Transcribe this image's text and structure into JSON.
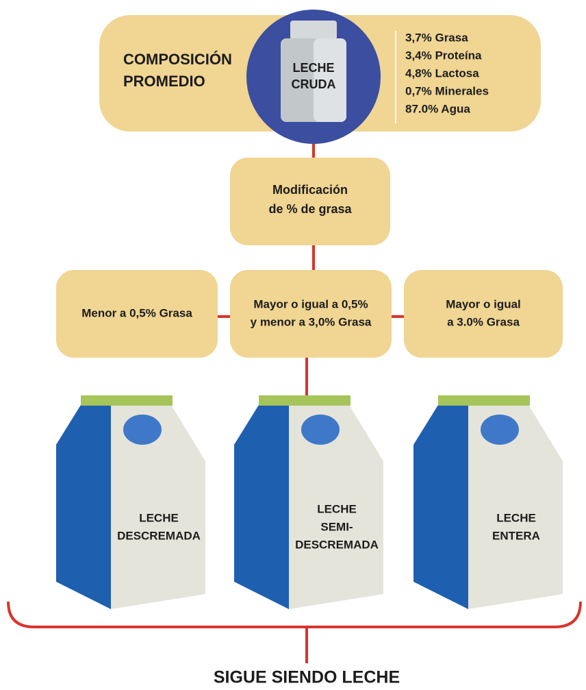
{
  "header": {
    "title_lines": [
      "COMPOSICIÓN",
      "PROMEDIO"
    ],
    "center_lines": [
      "LECHE",
      "CRUDA"
    ],
    "composition": [
      "3,7% Grasa",
      "3,4% Proteína",
      "4,8% Lactosa",
      "0,7% Minerales",
      "87.0% Agua"
    ]
  },
  "process": {
    "lines": [
      "Modificación",
      "de % de grasa"
    ]
  },
  "categories": [
    {
      "criteria_lines": [
        "Menor a 0,5% Grasa"
      ],
      "product_lines": [
        "LECHE",
        "DESCREMADA"
      ]
    },
    {
      "criteria_lines": [
        "Mayor o igual a 0,5%",
        "y menor a 3,0% Grasa"
      ],
      "product_lines": [
        "LECHE",
        "SEMI-",
        "DESCREMADA"
      ]
    },
    {
      "criteria_lines": [
        "Mayor o igual",
        "a 3.0% Grasa"
      ],
      "product_lines": [
        "LECHE",
        "ENTERA"
      ]
    }
  ],
  "footer": {
    "text": "SIGUE SIENDO LECHE"
  }
}
